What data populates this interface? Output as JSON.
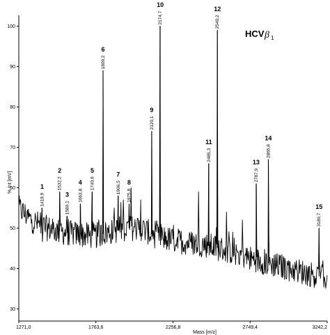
{
  "chart_data": {
    "type": "line",
    "title": "HCV",
    "title_symbol": "β",
    "title_subscript": "1",
    "xlabel": "Mass [m/z]",
    "ylabel": "% Int [mV]",
    "xlim": [
      1271.0,
      3242.2
    ],
    "ylim": [
      27,
      102
    ],
    "x_tick_labels": [
      "1271,0",
      "1763,6",
      "2256,8",
      "2749,4",
      "3242,2"
    ],
    "x_tick_values": [
      1271.0,
      1763.6,
      2256.8,
      2749.4,
      3242.2
    ],
    "y_ticks": [
      30,
      40,
      50,
      60,
      70,
      80,
      90,
      100
    ],
    "peaks": [
      {
        "label": "1",
        "mass": 1419.9,
        "mass_label": "1419,9",
        "intensity": 55
      },
      {
        "label": "2",
        "mass": 1532.2,
        "mass_label": "1532,2",
        "intensity": 59
      },
      {
        "label": "3",
        "mass": 1580.1,
        "mass_label": "1580,1",
        "intensity": 53
      },
      {
        "label": "4",
        "mass": 1663.8,
        "mass_label": "1663,8",
        "intensity": 56
      },
      {
        "label": "5",
        "mass": 1740.6,
        "mass_label": "1740,6",
        "intensity": 59
      },
      {
        "label": "6",
        "mass": 1809.2,
        "mass_label": "1809,2",
        "intensity": 89
      },
      {
        "label": "7",
        "mass": 1906.5,
        "mass_label": "1906,5",
        "intensity": 58
      },
      {
        "label": "8",
        "mass": 1975.8,
        "mass_label": "1975,8",
        "intensity": 56
      },
      {
        "label": "9",
        "mass": 2120.1,
        "mass_label": "2120,1",
        "intensity": 74
      },
      {
        "label": "10",
        "mass": 2174.7,
        "mass_label": "2174,7",
        "intensity": 100
      },
      {
        "label": "11",
        "mass": 2485.3,
        "mass_label": "2485,3",
        "intensity": 66
      },
      {
        "label": "12",
        "mass": 2540.2,
        "mass_label": "2540,2",
        "intensity": 99
      },
      {
        "label": "13",
        "mass": 2787.9,
        "mass_label": "2787,9",
        "intensity": 61
      },
      {
        "label": "14",
        "mass": 2865.8,
        "mass_label": "2865,8",
        "intensity": 67
      },
      {
        "label": "15",
        "mass": 3189.7,
        "mass_label": "3189,7",
        "intensity": 50
      }
    ],
    "baseline": [
      [
        1271,
        55
      ],
      [
        1350,
        52
      ],
      [
        1450,
        50
      ],
      [
        1550,
        49
      ],
      [
        1650,
        48.5
      ],
      [
        1750,
        48
      ],
      [
        1850,
        49
      ],
      [
        1950,
        50
      ],
      [
        2050,
        50
      ],
      [
        2150,
        48
      ],
      [
        2256,
        47
      ],
      [
        2350,
        46.5
      ],
      [
        2450,
        46
      ],
      [
        2550,
        45
      ],
      [
        2650,
        44
      ],
      [
        2749,
        42.5
      ],
      [
        2850,
        41.5
      ],
      [
        2950,
        40.5
      ],
      [
        3050,
        39.5
      ],
      [
        3150,
        38.5
      ],
      [
        3242,
        37.5
      ]
    ],
    "extra_features": [
      [
        1880,
        55
      ],
      [
        1940,
        57
      ],
      [
        1990,
        60
      ],
      [
        2050,
        57
      ],
      [
        2420,
        59
      ],
      [
        2600,
        54
      ],
      [
        2700,
        52
      ]
    ],
    "noise_amplitude": 3.2,
    "grid": false,
    "legend": "none"
  }
}
